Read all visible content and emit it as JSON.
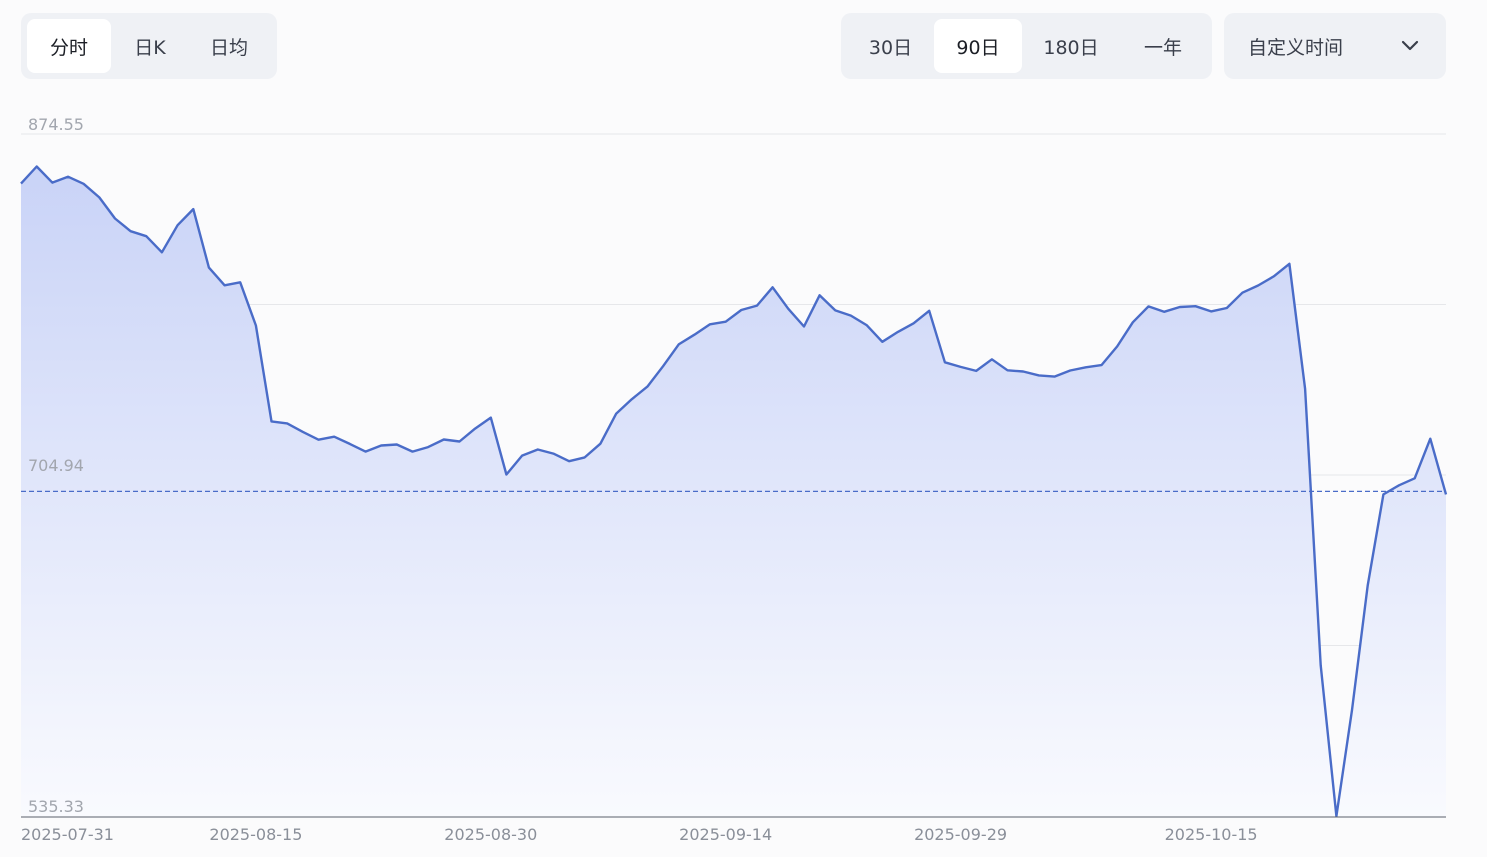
{
  "chart_tabs": [
    {
      "label": "分时",
      "active": true
    },
    {
      "label": "日K",
      "active": false
    },
    {
      "label": "日均",
      "active": false
    }
  ],
  "range_tabs": [
    {
      "label": "30日",
      "active": false
    },
    {
      "label": "90日",
      "active": true
    },
    {
      "label": "180日",
      "active": false
    },
    {
      "label": "一年",
      "active": false
    }
  ],
  "custom_time": {
    "label": "自定义时间",
    "icon": "chevron-down-icon"
  },
  "colors": {
    "line": "#4a6cc8",
    "fill_top": "#c9d3f7",
    "fill_bottom": "#f9fafe",
    "ref_line": "#4a6cc8",
    "grid": "#e6e7ea"
  },
  "chart_data": {
    "type": "area",
    "ylim": [
      535.33,
      874.55
    ],
    "y_ticks": [
      "874.55",
      "704.94",
      "535.33"
    ],
    "reference_value": 696.8,
    "x_ticks": [
      "2025-07-31",
      "2025-08-15",
      "2025-08-30",
      "2025-09-14",
      "2025-09-29",
      "2025-10-15"
    ],
    "x": [
      "2025-07-31",
      "2025-08-01",
      "2025-08-02",
      "2025-08-03",
      "2025-08-04",
      "2025-08-05",
      "2025-08-06",
      "2025-08-07",
      "2025-08-08",
      "2025-08-09",
      "2025-08-10",
      "2025-08-11",
      "2025-08-12",
      "2025-08-13",
      "2025-08-14",
      "2025-08-15",
      "2025-08-16",
      "2025-08-17",
      "2025-08-18",
      "2025-08-19",
      "2025-08-20",
      "2025-08-21",
      "2025-08-22",
      "2025-08-23",
      "2025-08-24",
      "2025-08-25",
      "2025-08-26",
      "2025-08-27",
      "2025-08-28",
      "2025-08-29",
      "2025-08-30",
      "2025-08-31",
      "2025-09-01",
      "2025-09-02",
      "2025-09-03",
      "2025-09-04",
      "2025-09-05",
      "2025-09-06",
      "2025-09-07",
      "2025-09-08",
      "2025-09-09",
      "2025-09-10",
      "2025-09-11",
      "2025-09-12",
      "2025-09-13",
      "2025-09-14",
      "2025-09-15",
      "2025-09-16",
      "2025-09-17",
      "2025-09-18",
      "2025-09-19",
      "2025-09-20",
      "2025-09-21",
      "2025-09-22",
      "2025-09-23",
      "2025-09-24",
      "2025-09-25",
      "2025-09-26",
      "2025-09-27",
      "2025-09-28",
      "2025-09-29",
      "2025-09-30",
      "2025-10-01",
      "2025-10-02",
      "2025-10-03",
      "2025-10-04",
      "2025-10-05",
      "2025-10-06",
      "2025-10-07",
      "2025-10-08",
      "2025-10-09",
      "2025-10-10",
      "2025-10-11",
      "2025-10-12",
      "2025-10-13",
      "2025-10-14",
      "2025-10-15",
      "2025-10-16",
      "2025-10-17",
      "2025-10-18",
      "2025-10-19",
      "2025-10-20",
      "2025-10-21",
      "2025-10-22",
      "2025-10-23",
      "2025-10-24",
      "2025-10-25",
      "2025-10-26",
      "2025-10-27",
      "2025-10-28",
      "2025-10-29",
      "2025-10-30"
    ],
    "series": [
      {
        "values": [
          849.9,
          858.4,
          850.4,
          853.3,
          849.8,
          843.0,
          832.5,
          826.2,
          823.7,
          815.7,
          829.2,
          837.2,
          808.1,
          799.3,
          800.8,
          779.3,
          731.6,
          730.6,
          726.4,
          722.5,
          724.0,
          720.4,
          716.6,
          719.6,
          720.1,
          716.6,
          718.8,
          722.6,
          721.6,
          728.0,
          733.5,
          705.2,
          714.6,
          717.6,
          715.6,
          711.8,
          713.7,
          720.5,
          735.4,
          742.6,
          748.9,
          759.0,
          769.9,
          774.7,
          779.9,
          781.2,
          787.0,
          789.2,
          798.3,
          787.6,
          778.8,
          794.3,
          786.8,
          784.2,
          779.5,
          771.2,
          776.1,
          780.4,
          786.6,
          761.0,
          758.7,
          756.7,
          762.5,
          757.0,
          756.4,
          754.5,
          753.9,
          756.9,
          758.5,
          759.6,
          768.9,
          780.9,
          788.8,
          786.1,
          788.5,
          788.9,
          786.3,
          788.0,
          795.6,
          799.2,
          803.7,
          810.0,
          747.8,
          610.3,
          535.3,
          588.0,
          650.0,
          695.3,
          699.8,
          703.3,
          723.0,
          695.3
        ]
      }
    ]
  }
}
